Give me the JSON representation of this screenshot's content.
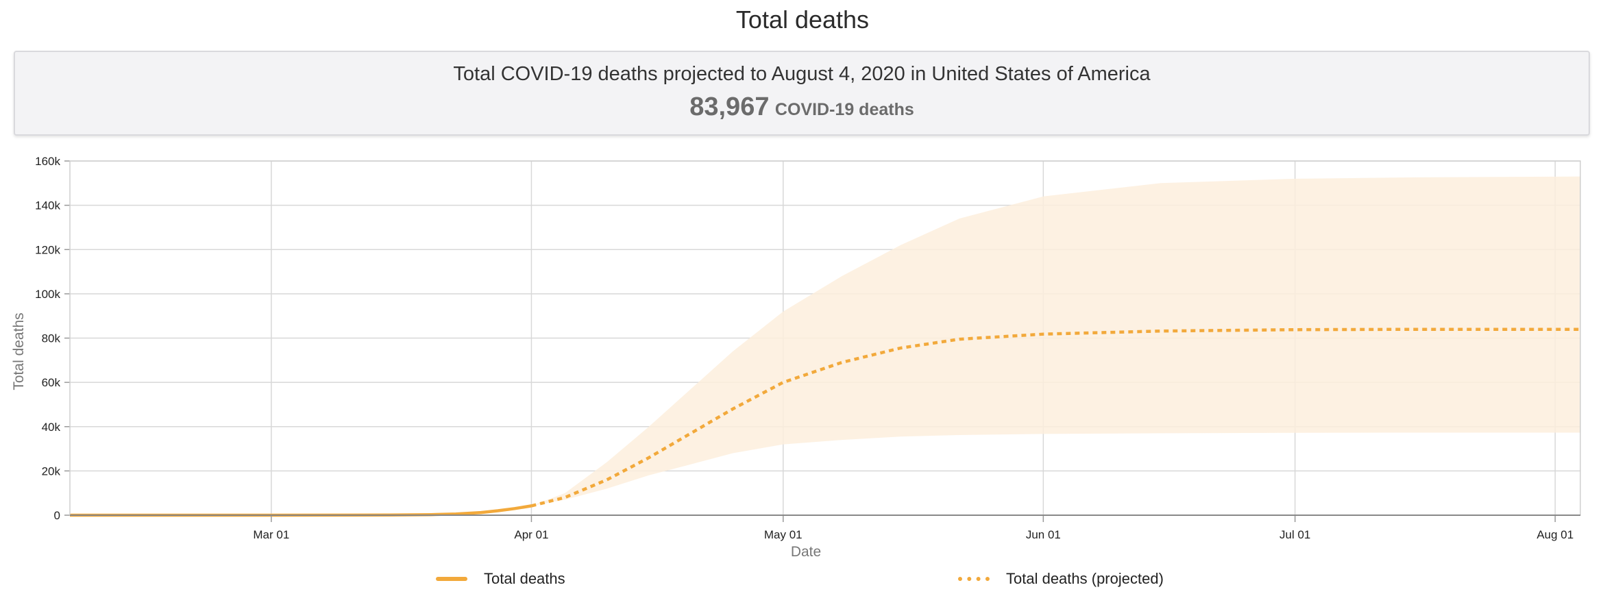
{
  "page": {
    "title": "Total deaths",
    "summary_text": "Total COVID-19 deaths projected to August 4, 2020 in United States of America",
    "summary_value": "83,967",
    "summary_unit": "COVID-19 deaths"
  },
  "colors": {
    "line": "#f2a93b",
    "band": "#fdeedd",
    "grid": "#d8d8d8"
  },
  "chart_data": {
    "type": "line",
    "xlabel": "Date",
    "ylabel": "Total deaths",
    "ylim": [
      0,
      160000
    ],
    "xlim": [
      "2020-02-06",
      "2020-08-04"
    ],
    "x_ticks": [
      {
        "date": "2020-03-01",
        "label": "Mar 01"
      },
      {
        "date": "2020-04-01",
        "label": "Apr 01"
      },
      {
        "date": "2020-05-01",
        "label": "May 01"
      },
      {
        "date": "2020-06-01",
        "label": "Jun 01"
      },
      {
        "date": "2020-07-01",
        "label": "Jul 01"
      },
      {
        "date": "2020-08-01",
        "label": "Aug 01"
      }
    ],
    "y_ticks": [
      {
        "value": 0,
        "label": "0"
      },
      {
        "value": 20000,
        "label": "20k"
      },
      {
        "value": 40000,
        "label": "40k"
      },
      {
        "value": 60000,
        "label": "60k"
      },
      {
        "value": 80000,
        "label": "80k"
      },
      {
        "value": 100000,
        "label": "100k"
      },
      {
        "value": 120000,
        "label": "120k"
      },
      {
        "value": 140000,
        "label": "140k"
      },
      {
        "value": 160000,
        "label": "160k"
      }
    ],
    "grid": true,
    "legend_position": "bottom",
    "series": [
      {
        "name": "Total deaths",
        "style": "solid",
        "points": [
          {
            "x": "2020-02-06",
            "y": 0
          },
          {
            "x": "2020-03-01",
            "y": 1
          },
          {
            "x": "2020-03-10",
            "y": 30
          },
          {
            "x": "2020-03-15",
            "y": 70
          },
          {
            "x": "2020-03-20",
            "y": 250
          },
          {
            "x": "2020-03-23",
            "y": 550
          },
          {
            "x": "2020-03-26",
            "y": 1200
          },
          {
            "x": "2020-03-28",
            "y": 2000
          },
          {
            "x": "2020-03-30",
            "y": 3000
          },
          {
            "x": "2020-04-01",
            "y": 4200
          }
        ]
      },
      {
        "name": "Total deaths (projected)",
        "style": "dotted",
        "points": [
          {
            "x": "2020-04-01",
            "y": 4200
          },
          {
            "x": "2020-04-05",
            "y": 8000
          },
          {
            "x": "2020-04-10",
            "y": 16000
          },
          {
            "x": "2020-04-15",
            "y": 26000
          },
          {
            "x": "2020-04-20",
            "y": 37000
          },
          {
            "x": "2020-04-25",
            "y": 48000
          },
          {
            "x": "2020-05-01",
            "y": 60000
          },
          {
            "x": "2020-05-08",
            "y": 69000
          },
          {
            "x": "2020-05-15",
            "y": 75500
          },
          {
            "x": "2020-05-22",
            "y": 79500
          },
          {
            "x": "2020-06-01",
            "y": 81800
          },
          {
            "x": "2020-06-15",
            "y": 83200
          },
          {
            "x": "2020-07-01",
            "y": 83800
          },
          {
            "x": "2020-07-15",
            "y": 83950
          },
          {
            "x": "2020-08-04",
            "y": 83967
          }
        ]
      }
    ],
    "uncertainty_band": {
      "points": [
        {
          "x": "2020-04-01",
          "lower": 4200,
          "upper": 4200
        },
        {
          "x": "2020-04-05",
          "lower": 7000,
          "upper": 10000
        },
        {
          "x": "2020-04-10",
          "lower": 12000,
          "upper": 24000
        },
        {
          "x": "2020-04-15",
          "lower": 18000,
          "upper": 40000
        },
        {
          "x": "2020-04-20",
          "lower": 23000,
          "upper": 57000
        },
        {
          "x": "2020-04-25",
          "lower": 28000,
          "upper": 74000
        },
        {
          "x": "2020-05-01",
          "lower": 32000,
          "upper": 92000
        },
        {
          "x": "2020-05-08",
          "lower": 34000,
          "upper": 108000
        },
        {
          "x": "2020-05-15",
          "lower": 35500,
          "upper": 122000
        },
        {
          "x": "2020-05-22",
          "lower": 36200,
          "upper": 134000
        },
        {
          "x": "2020-06-01",
          "lower": 36700,
          "upper": 144000
        },
        {
          "x": "2020-06-15",
          "lower": 37000,
          "upper": 150000
        },
        {
          "x": "2020-07-01",
          "lower": 37200,
          "upper": 152000
        },
        {
          "x": "2020-07-15",
          "lower": 37300,
          "upper": 152600
        },
        {
          "x": "2020-08-04",
          "lower": 37300,
          "upper": 153000
        }
      ]
    }
  }
}
